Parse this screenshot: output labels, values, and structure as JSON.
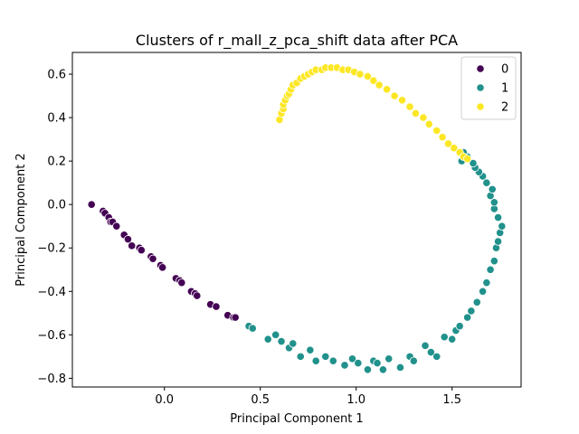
{
  "chart_data": {
    "type": "scatter",
    "title": "Clusters of r_mall_z_pca_shift data after PCA",
    "xlabel": "Principal Component 1",
    "ylabel": "Principal Component 2",
    "xlim": [
      -0.48,
      1.86
    ],
    "ylim": [
      -0.84,
      0.7
    ],
    "xticks": [
      "0.0",
      "0.5",
      "1.0",
      "1.5"
    ],
    "xtick_values": [
      0.0,
      0.5,
      1.0,
      1.5
    ],
    "yticks": [
      "−0.8",
      "−0.6",
      "−0.4",
      "−0.2",
      "0.0",
      "0.2",
      "0.4",
      "0.6"
    ],
    "ytick_values": [
      -0.8,
      -0.6,
      -0.4,
      -0.2,
      0.0,
      0.2,
      0.4,
      0.6
    ],
    "grid": false,
    "legend_placement": "top-right",
    "legend_title": "",
    "series": [
      {
        "name": "0",
        "color": "#440154",
        "x": [
          -0.38,
          -0.32,
          -0.31,
          -0.29,
          -0.28,
          -0.27,
          -0.25,
          -0.21,
          -0.19,
          -0.17,
          -0.13,
          -0.12,
          -0.07,
          -0.06,
          -0.02,
          -0.01,
          0.06,
          0.08,
          0.09,
          0.14,
          0.16,
          0.17,
          0.24,
          0.27,
          0.33,
          0.36,
          0.37
        ],
        "y": [
          0.0,
          -0.03,
          -0.04,
          -0.06,
          -0.08,
          -0.08,
          -0.1,
          -0.14,
          -0.16,
          -0.19,
          -0.2,
          -0.21,
          -0.24,
          -0.25,
          -0.28,
          -0.29,
          -0.34,
          -0.35,
          -0.36,
          -0.4,
          -0.41,
          -0.42,
          -0.46,
          -0.47,
          -0.51,
          -0.52,
          -0.52
        ]
      },
      {
        "name": "1",
        "color": "#21918c",
        "x": [
          0.44,
          0.46,
          0.54,
          0.58,
          0.61,
          0.65,
          0.67,
          0.71,
          0.76,
          0.79,
          0.84,
          0.88,
          0.94,
          0.98,
          1.01,
          1.06,
          1.09,
          1.11,
          1.14,
          1.17,
          1.23,
          1.28,
          1.3,
          1.36,
          1.39,
          1.42,
          1.46,
          1.5,
          1.52,
          1.54,
          1.58,
          1.6,
          1.63,
          1.66,
          1.68,
          1.7,
          1.72,
          1.73,
          1.74,
          1.75,
          1.76,
          1.74,
          1.72,
          1.72,
          1.7,
          1.71,
          1.68,
          1.66,
          1.64,
          1.62,
          1.61,
          1.58,
          1.56,
          1.55
        ],
        "y": [
          -0.56,
          -0.57,
          -0.62,
          -0.6,
          -0.63,
          -0.66,
          -0.64,
          -0.7,
          -0.67,
          -0.72,
          -0.7,
          -0.72,
          -0.74,
          -0.71,
          -0.73,
          -0.76,
          -0.72,
          -0.73,
          -0.76,
          -0.71,
          -0.75,
          -0.7,
          -0.72,
          -0.65,
          -0.68,
          -0.7,
          -0.61,
          -0.62,
          -0.58,
          -0.56,
          -0.52,
          -0.49,
          -0.45,
          -0.4,
          -0.36,
          -0.3,
          -0.26,
          -0.2,
          -0.17,
          -0.13,
          -0.1,
          -0.06,
          -0.02,
          0.01,
          0.04,
          0.07,
          0.1,
          0.13,
          0.15,
          0.17,
          0.19,
          0.22,
          0.24,
          0.2
        ]
      },
      {
        "name": "2",
        "color": "#fde725",
        "x": [
          0.6,
          0.61,
          0.62,
          0.62,
          0.63,
          0.64,
          0.65,
          0.66,
          0.67,
          0.69,
          0.71,
          0.73,
          0.75,
          0.77,
          0.79,
          0.82,
          0.84,
          0.87,
          0.9,
          0.93,
          0.96,
          0.99,
          1.02,
          1.06,
          1.09,
          1.12,
          1.16,
          1.2,
          1.24,
          1.28,
          1.31,
          1.35,
          1.38,
          1.42,
          1.45,
          1.48,
          1.51,
          1.54,
          1.56,
          1.58
        ],
        "y": [
          0.39,
          0.42,
          0.44,
          0.46,
          0.48,
          0.5,
          0.51,
          0.53,
          0.55,
          0.56,
          0.58,
          0.59,
          0.6,
          0.61,
          0.62,
          0.62,
          0.63,
          0.63,
          0.63,
          0.62,
          0.62,
          0.61,
          0.6,
          0.59,
          0.57,
          0.55,
          0.53,
          0.5,
          0.48,
          0.45,
          0.42,
          0.4,
          0.37,
          0.34,
          0.31,
          0.28,
          0.26,
          0.24,
          0.22,
          0.21
        ]
      }
    ]
  }
}
